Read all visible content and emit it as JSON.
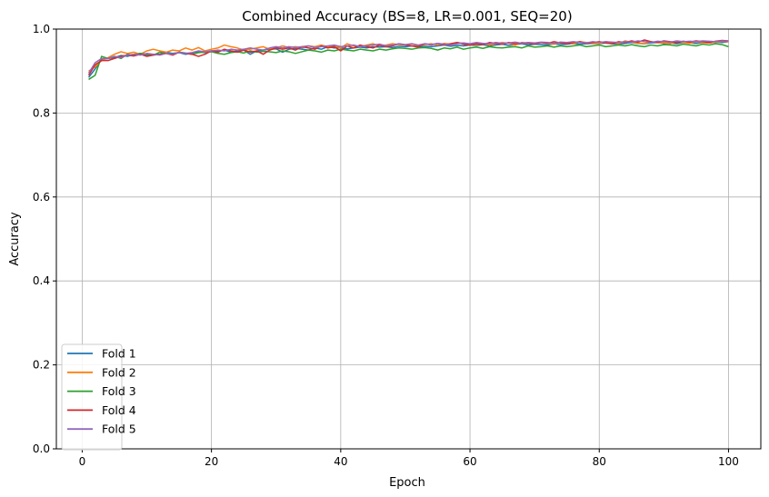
{
  "chart_data": {
    "type": "line",
    "title": "Combined Accuracy (BS=8, LR=0.001, SEQ=20)",
    "xlabel": "Epoch",
    "ylabel": "Accuracy",
    "xlim": [
      -4,
      105
    ],
    "ylim": [
      0.0,
      1.0
    ],
    "xticks": [
      0,
      20,
      40,
      60,
      80,
      100
    ],
    "yticks": [
      0.0,
      0.2,
      0.4,
      0.6,
      0.8,
      1.0
    ],
    "xtick_labels": [
      "0",
      "20",
      "40",
      "60",
      "80",
      "100"
    ],
    "ytick_labels": [
      "0.0",
      "0.2",
      "0.4",
      "0.6",
      "0.8",
      "1.0"
    ],
    "grid": true,
    "legend_position": "lower-left",
    "x_start": 1,
    "series": [
      {
        "name": "Fold 1",
        "color": "#1f77b4",
        "values": [
          0.885,
          0.905,
          0.928,
          0.93,
          0.932,
          0.937,
          0.935,
          0.94,
          0.942,
          0.938,
          0.94,
          0.94,
          0.945,
          0.942,
          0.944,
          0.94,
          0.943,
          0.946,
          0.944,
          0.948,
          0.947,
          0.95,
          0.945,
          0.948,
          0.95,
          0.94,
          0.948,
          0.95,
          0.952,
          0.953,
          0.945,
          0.952,
          0.954,
          0.952,
          0.95,
          0.955,
          0.952,
          0.958,
          0.955,
          0.956,
          0.953,
          0.955,
          0.957,
          0.955,
          0.958,
          0.957,
          0.958,
          0.956,
          0.959,
          0.958,
          0.96,
          0.957,
          0.959,
          0.958,
          0.96,
          0.962,
          0.959,
          0.961,
          0.96,
          0.962,
          0.961,
          0.963,
          0.96,
          0.962,
          0.964,
          0.961,
          0.963,
          0.965,
          0.962,
          0.964,
          0.963,
          0.962,
          0.965,
          0.963,
          0.964,
          0.966,
          0.964,
          0.965,
          0.966,
          0.965,
          0.967,
          0.965,
          0.964,
          0.966,
          0.968,
          0.966,
          0.965,
          0.967,
          0.968,
          0.966,
          0.967,
          0.965,
          0.968,
          0.967,
          0.966,
          0.968,
          0.967,
          0.969,
          0.968,
          0.97
        ]
      },
      {
        "name": "Fold 2",
        "color": "#ff7f0e",
        "values": [
          0.9,
          0.91,
          0.925,
          0.932,
          0.94,
          0.946,
          0.942,
          0.945,
          0.94,
          0.948,
          0.952,
          0.948,
          0.945,
          0.95,
          0.948,
          0.955,
          0.95,
          0.956,
          0.948,
          0.952,
          0.955,
          0.962,
          0.958,
          0.955,
          0.95,
          0.952,
          0.955,
          0.958,
          0.952,
          0.955,
          0.96,
          0.956,
          0.958,
          0.955,
          0.96,
          0.958,
          0.962,
          0.958,
          0.96,
          0.955,
          0.965,
          0.96,
          0.958,
          0.962,
          0.965,
          0.96,
          0.962,
          0.965,
          0.963,
          0.962,
          0.965,
          0.96,
          0.963,
          0.965,
          0.962,
          0.966,
          0.964,
          0.968,
          0.966,
          0.964,
          0.963,
          0.966,
          0.962,
          0.965,
          0.968,
          0.966,
          0.962,
          0.968,
          0.967,
          0.965,
          0.968,
          0.966,
          0.964,
          0.969,
          0.967,
          0.965,
          0.97,
          0.968,
          0.966,
          0.965,
          0.97,
          0.968,
          0.965,
          0.972,
          0.969,
          0.967,
          0.965,
          0.97,
          0.968,
          0.967,
          0.965,
          0.97,
          0.968,
          0.966,
          0.97,
          0.968,
          0.967,
          0.969,
          0.971,
          0.97
        ]
      },
      {
        "name": "Fold 3",
        "color": "#2ca02c",
        "values": [
          0.88,
          0.89,
          0.935,
          0.93,
          0.935,
          0.93,
          0.94,
          0.938,
          0.942,
          0.94,
          0.938,
          0.945,
          0.942,
          0.94,
          0.945,
          0.943,
          0.94,
          0.944,
          0.945,
          0.946,
          0.942,
          0.94,
          0.944,
          0.946,
          0.943,
          0.948,
          0.945,
          0.947,
          0.946,
          0.944,
          0.948,
          0.946,
          0.942,
          0.946,
          0.95,
          0.948,
          0.945,
          0.95,
          0.948,
          0.952,
          0.95,
          0.948,
          0.952,
          0.95,
          0.948,
          0.952,
          0.95,
          0.953,
          0.955,
          0.954,
          0.952,
          0.955,
          0.956,
          0.954,
          0.95,
          0.955,
          0.953,
          0.957,
          0.952,
          0.955,
          0.957,
          0.954,
          0.958,
          0.956,
          0.955,
          0.957,
          0.958,
          0.955,
          0.96,
          0.957,
          0.958,
          0.96,
          0.957,
          0.96,
          0.958,
          0.96,
          0.962,
          0.958,
          0.96,
          0.962,
          0.958,
          0.96,
          0.962,
          0.96,
          0.963,
          0.96,
          0.958,
          0.962,
          0.96,
          0.963,
          0.962,
          0.96,
          0.964,
          0.962,
          0.96,
          0.964,
          0.962,
          0.965,
          0.963,
          0.958
        ]
      },
      {
        "name": "Fold 4",
        "color": "#d62728",
        "values": [
          0.89,
          0.915,
          0.925,
          0.925,
          0.93,
          0.935,
          0.938,
          0.936,
          0.94,
          0.935,
          0.938,
          0.94,
          0.942,
          0.938,
          0.945,
          0.942,
          0.94,
          0.935,
          0.94,
          0.948,
          0.945,
          0.952,
          0.948,
          0.945,
          0.95,
          0.945,
          0.948,
          0.94,
          0.95,
          0.955,
          0.952,
          0.955,
          0.95,
          0.958,
          0.955,
          0.952,
          0.96,
          0.955,
          0.958,
          0.948,
          0.96,
          0.955,
          0.962,
          0.958,
          0.955,
          0.962,
          0.958,
          0.96,
          0.965,
          0.962,
          0.96,
          0.958,
          0.965,
          0.962,
          0.966,
          0.962,
          0.965,
          0.968,
          0.964,
          0.962,
          0.965,
          0.963,
          0.968,
          0.966,
          0.964,
          0.968,
          0.965,
          0.967,
          0.966,
          0.965,
          0.968,
          0.966,
          0.97,
          0.967,
          0.965,
          0.968,
          0.97,
          0.966,
          0.968,
          0.97,
          0.967,
          0.965,
          0.97,
          0.968,
          0.972,
          0.969,
          0.974,
          0.97,
          0.968,
          0.972,
          0.97,
          0.968,
          0.971,
          0.969,
          0.972,
          0.97,
          0.968,
          0.971,
          0.973,
          0.972
        ]
      },
      {
        "name": "Fold 5",
        "color": "#9467bd",
        "values": [
          0.895,
          0.92,
          0.93,
          0.93,
          0.935,
          0.932,
          0.938,
          0.94,
          0.938,
          0.942,
          0.94,
          0.938,
          0.942,
          0.94,
          0.945,
          0.942,
          0.944,
          0.948,
          0.946,
          0.948,
          0.95,
          0.948,
          0.952,
          0.95,
          0.952,
          0.955,
          0.952,
          0.95,
          0.955,
          0.958,
          0.955,
          0.958,
          0.956,
          0.958,
          0.96,
          0.956,
          0.958,
          0.96,
          0.962,
          0.958,
          0.96,
          0.962,
          0.958,
          0.96,
          0.962,
          0.964,
          0.96,
          0.962,
          0.965,
          0.963,
          0.965,
          0.962,
          0.965,
          0.963,
          0.966,
          0.964,
          0.962,
          0.965,
          0.967,
          0.965,
          0.968,
          0.966,
          0.965,
          0.968,
          0.966,
          0.967,
          0.969,
          0.966,
          0.968,
          0.967,
          0.969,
          0.968,
          0.966,
          0.969,
          0.968,
          0.97,
          0.968,
          0.967,
          0.97,
          0.968,
          0.97,
          0.969,
          0.968,
          0.97,
          0.969,
          0.972,
          0.97,
          0.968,
          0.971,
          0.97,
          0.969,
          0.972,
          0.97,
          0.971,
          0.97,
          0.972,
          0.971,
          0.97,
          0.972,
          0.971
        ]
      }
    ]
  }
}
